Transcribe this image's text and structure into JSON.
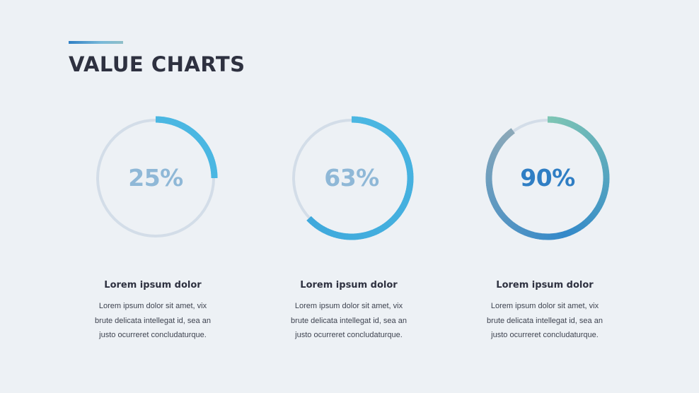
{
  "page": {
    "title": "VALUE CHARTS"
  },
  "chart_data": [
    {
      "type": "pie",
      "style": "donut-gauge",
      "value": 25,
      "label": "25%",
      "max": 100,
      "title": "Lorem ipsum dolor",
      "description": [
        "Lorem ipsum dolor sit amet, vix",
        "brute delicata intellegat id, sea an",
        "justo ocurreret concludaturque."
      ],
      "colors": {
        "track": "#d3dde8",
        "arc_start": "#4bb7e2",
        "arc_end": "#4bb7e2",
        "text": "#8fb8d7"
      }
    },
    {
      "type": "pie",
      "style": "donut-gauge",
      "value": 63,
      "label": "63%",
      "max": 100,
      "title": "Lorem ipsum dolor",
      "description": [
        "Lorem ipsum dolor sit amet, vix",
        "brute delicata intellegat id, sea an",
        "justo ocurreret concludaturque."
      ],
      "colors": {
        "track": "#d3dde8",
        "arc_start": "#4bb7e2",
        "arc_end": "#3fa9dc",
        "text": "#8fb8d7"
      }
    },
    {
      "type": "pie",
      "style": "donut-gauge",
      "value": 90,
      "label": "90%",
      "max": 100,
      "title": "Lorem ipsum dolor",
      "description": [
        "Lorem ipsum dolor sit amet, vix",
        "brute delicata intellegat id, sea an",
        "justo ocurreret concludaturque."
      ],
      "colors": {
        "track": "#d3dde8",
        "arc_start": "#7ec5b4",
        "arc_mid": "#3389c9",
        "arc_end": "#8ba8b8",
        "text": "#2f7ec4"
      }
    }
  ]
}
